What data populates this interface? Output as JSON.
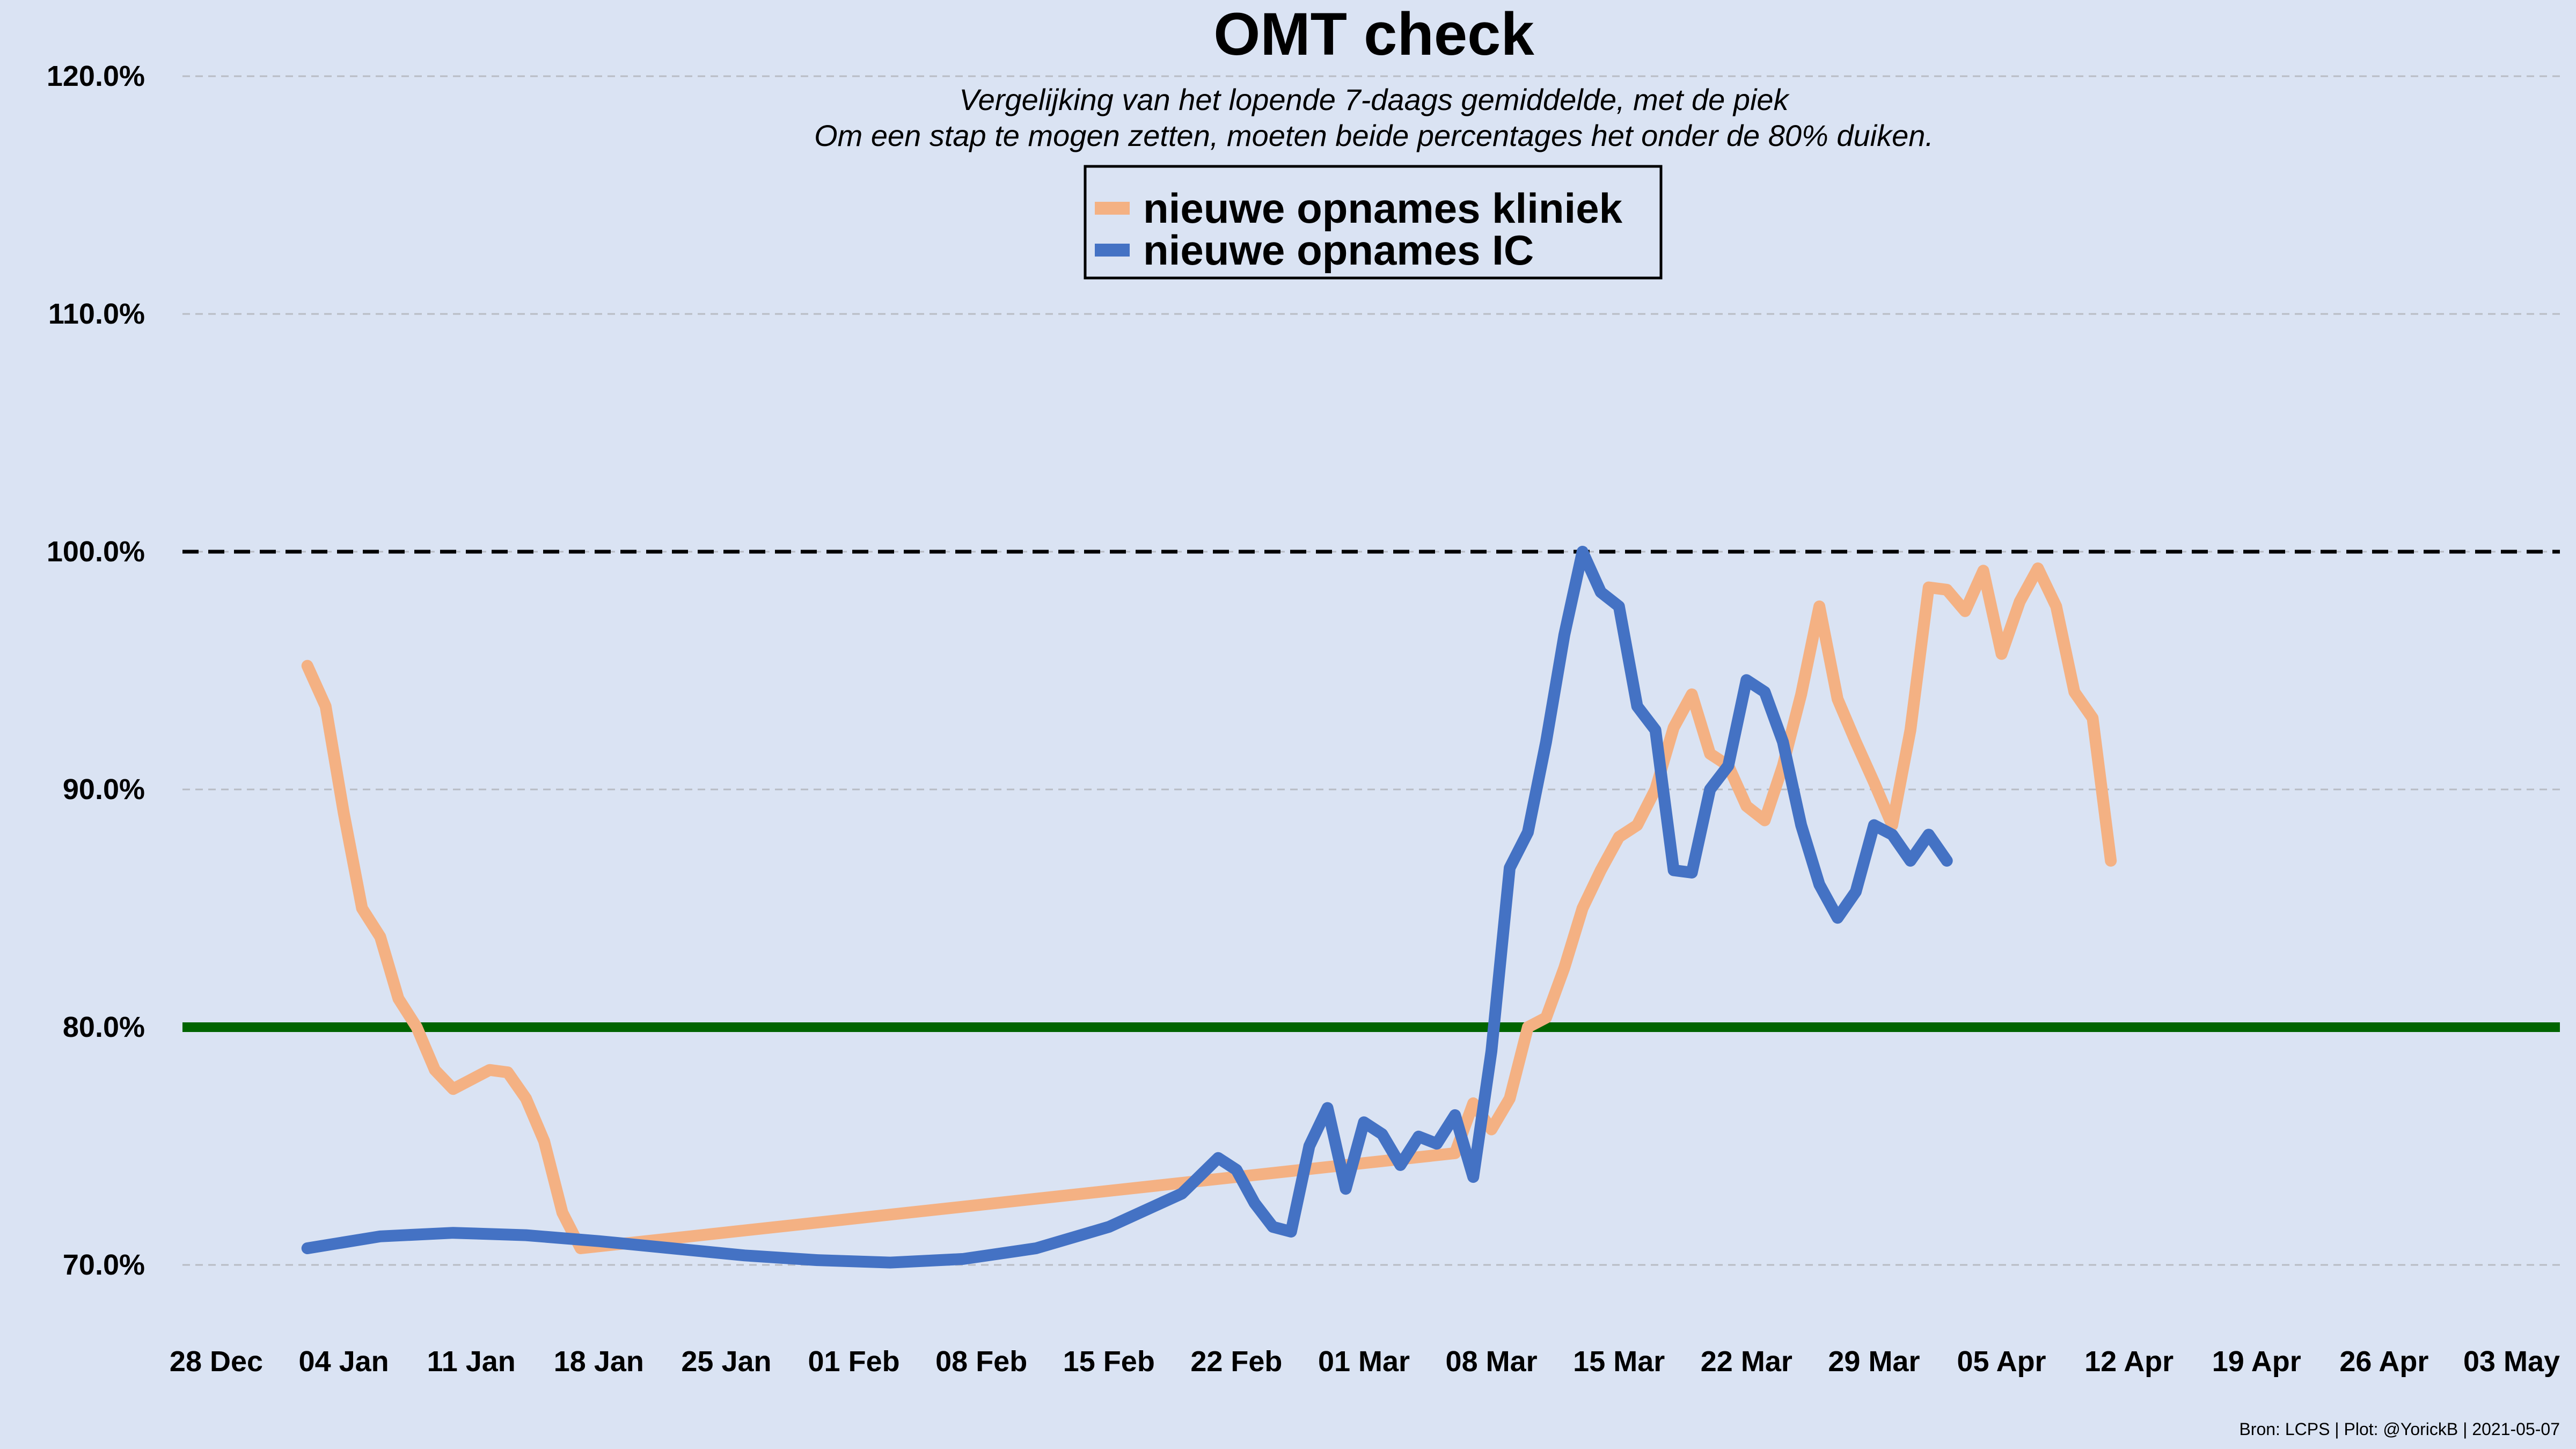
{
  "chart_data": {
    "type": "line",
    "title": "OMT check",
    "subtitle_lines": [
      "Vergelijking van het lopende 7-daags gemiddelde, met de piek",
      "Om een stap te mogen zetten, moeten beide percentages het onder de 80% duiken."
    ],
    "xlabel": "",
    "ylabel": "",
    "x_ticks": [
      "28 Dec",
      "04 Jan",
      "11 Jan",
      "18 Jan",
      "25 Jan",
      "01 Feb",
      "08 Feb",
      "15 Feb",
      "22 Feb",
      "01 Mar",
      "08 Mar",
      "15 Mar",
      "22 Mar",
      "29 Mar",
      "05 Apr",
      "12 Apr",
      "19 Apr",
      "26 Apr",
      "03 May"
    ],
    "y_ticks": [
      70,
      80,
      90,
      100,
      110,
      120
    ],
    "y_tick_labels": [
      "70.0%",
      "80.0%",
      "90.0%",
      "100.0%",
      "110.0%",
      "120.0%"
    ],
    "xlim": [
      "2020-12-28",
      "2021-05-03"
    ],
    "ylim": [
      69.3,
      123.5
    ],
    "grid": "horizontal dashed",
    "reference_lines": [
      {
        "y": 100,
        "style": "dashed",
        "color": "#000000"
      },
      {
        "y": 80,
        "style": "solid",
        "color": "#006400"
      }
    ],
    "legend_position": "top-center",
    "series": [
      {
        "name": "nieuwe opnames kliniek",
        "color": "#f4b183",
        "points": [
          [
            "2021-01-02",
            95.2
          ],
          [
            "2021-01-03",
            93.5
          ],
          [
            "2021-01-04",
            89.0
          ],
          [
            "2021-01-05",
            85.0
          ],
          [
            "2021-01-06",
            83.8
          ],
          [
            "2021-01-07",
            81.2
          ],
          [
            "2021-01-08",
            80.0
          ],
          [
            "2021-01-09",
            78.2
          ],
          [
            "2021-01-10",
            77.4
          ],
          [
            "2021-01-11",
            77.8
          ],
          [
            "2021-01-12",
            78.2
          ],
          [
            "2021-01-13",
            78.1
          ],
          [
            "2021-01-14",
            77.0
          ],
          [
            "2021-01-15",
            75.2
          ],
          [
            "2021-01-16",
            72.2
          ],
          [
            "2021-01-17",
            70.7
          ],
          [
            "2021-03-06",
            74.7
          ],
          [
            "2021-03-07",
            76.8
          ],
          [
            "2021-03-08",
            75.7
          ],
          [
            "2021-03-09",
            77.0
          ],
          [
            "2021-03-10",
            80.0
          ],
          [
            "2021-03-11",
            80.4
          ],
          [
            "2021-03-12",
            82.5
          ],
          [
            "2021-03-13",
            85.0
          ],
          [
            "2021-03-14",
            86.6
          ],
          [
            "2021-03-15",
            88.0
          ],
          [
            "2021-03-16",
            88.5
          ],
          [
            "2021-03-17",
            90.0
          ],
          [
            "2021-03-18",
            92.6
          ],
          [
            "2021-03-19",
            94.0
          ],
          [
            "2021-03-20",
            91.5
          ],
          [
            "2021-03-21",
            91.0
          ],
          [
            "2021-03-22",
            89.3
          ],
          [
            "2021-03-23",
            88.7
          ],
          [
            "2021-03-24",
            91.0
          ],
          [
            "2021-03-25",
            94.0
          ],
          [
            "2021-03-26",
            97.7
          ],
          [
            "2021-03-27",
            93.8
          ],
          [
            "2021-03-28",
            92.0
          ],
          [
            "2021-03-29",
            90.3
          ],
          [
            "2021-03-30",
            88.5
          ],
          [
            "2021-03-31",
            92.5
          ],
          [
            "2021-04-01",
            98.5
          ],
          [
            "2021-04-02",
            98.4
          ],
          [
            "2021-04-03",
            97.5
          ],
          [
            "2021-04-04",
            99.2
          ],
          [
            "2021-04-05",
            95.7
          ],
          [
            "2021-04-06",
            97.9
          ],
          [
            "2021-04-07",
            99.3
          ],
          [
            "2021-04-08",
            97.7
          ],
          [
            "2021-04-09",
            94.1
          ],
          [
            "2021-04-10",
            93.0
          ],
          [
            "2021-04-11",
            87.0
          ]
        ]
      },
      {
        "name": "nieuwe opnames IC",
        "color": "#4472c4",
        "points": [
          [
            "2021-01-02",
            70.7
          ],
          [
            "2021-01-06",
            71.2
          ],
          [
            "2021-01-10",
            71.35
          ],
          [
            "2021-01-14",
            71.25
          ],
          [
            "2021-01-18",
            71.0
          ],
          [
            "2021-01-22",
            70.7
          ],
          [
            "2021-01-26",
            70.4
          ],
          [
            "2021-01-30",
            70.2
          ],
          [
            "2021-02-03",
            70.1
          ],
          [
            "2021-02-07",
            70.25
          ],
          [
            "2021-02-11",
            70.7
          ],
          [
            "2021-02-15",
            71.6
          ],
          [
            "2021-02-19",
            73.0
          ],
          [
            "2021-02-21",
            74.5
          ],
          [
            "2021-02-22",
            74.0
          ],
          [
            "2021-02-23",
            72.6
          ],
          [
            "2021-02-24",
            71.6
          ],
          [
            "2021-02-25",
            71.4
          ],
          [
            "2021-02-26",
            75.0
          ],
          [
            "2021-02-27",
            76.6
          ],
          [
            "2021-02-28",
            73.2
          ],
          [
            "2021-03-01",
            76.0
          ],
          [
            "2021-03-02",
            75.5
          ],
          [
            "2021-03-03",
            74.2
          ],
          [
            "2021-03-04",
            75.4
          ],
          [
            "2021-03-05",
            75.1
          ],
          [
            "2021-03-06",
            76.3
          ],
          [
            "2021-03-07",
            73.7
          ],
          [
            "2021-03-08",
            79.0
          ],
          [
            "2021-03-09",
            86.7
          ],
          [
            "2021-03-10",
            88.2
          ],
          [
            "2021-03-11",
            92.0
          ],
          [
            "2021-03-12",
            96.5
          ],
          [
            "2021-03-13",
            100.0
          ],
          [
            "2021-03-14",
            98.3
          ],
          [
            "2021-03-15",
            97.7
          ],
          [
            "2021-03-16",
            93.5
          ],
          [
            "2021-03-17",
            92.5
          ],
          [
            "2021-03-18",
            86.6
          ],
          [
            "2021-03-19",
            86.5
          ],
          [
            "2021-03-20",
            90.0
          ],
          [
            "2021-03-21",
            91.0
          ],
          [
            "2021-03-22",
            94.6
          ],
          [
            "2021-03-23",
            94.1
          ],
          [
            "2021-03-24",
            92.0
          ],
          [
            "2021-03-25",
            88.5
          ],
          [
            "2021-03-26",
            86.0
          ],
          [
            "2021-03-27",
            84.6
          ],
          [
            "2021-03-28",
            85.7
          ],
          [
            "2021-03-29",
            88.5
          ],
          [
            "2021-03-30",
            88.1
          ],
          [
            "2021-03-31",
            87.0
          ],
          [
            "2021-04-01",
            88.1
          ],
          [
            "2021-04-02",
            87.0
          ]
        ]
      }
    ]
  },
  "footer": {
    "source": "Bron: LCPS | Plot: @YorickB |  2021-05-07"
  }
}
